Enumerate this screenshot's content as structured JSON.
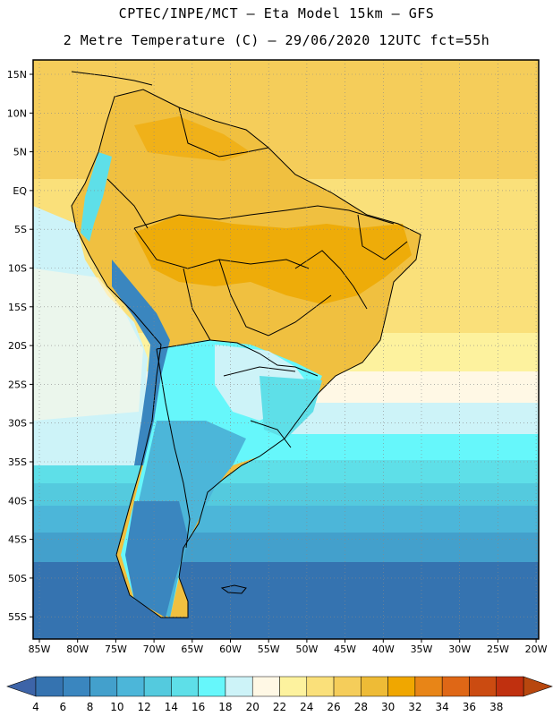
{
  "header": {
    "title_line1": "CPTEC/INPE/MCT –  Eta Model 15km – GFS",
    "title_line2": "2 Metre Temperature (C) – 29/06/2020 12UTC fct=55h"
  },
  "map": {
    "lat_labels": [
      "15N",
      "10N",
      "5N",
      "EQ",
      "5S",
      "10S",
      "15S",
      "20S",
      "25S",
      "30S",
      "35S",
      "40S",
      "45S",
      "50S",
      "55S"
    ],
    "lon_labels": [
      "85W",
      "80W",
      "75W",
      "70W",
      "65W",
      "60W",
      "55W",
      "50W",
      "45W",
      "40W",
      "35W",
      "30W",
      "25W",
      "20W"
    ]
  },
  "colorbar": {
    "labels": [
      "4",
      "6",
      "8",
      "10",
      "12",
      "14",
      "16",
      "18",
      "20",
      "22",
      "24",
      "26",
      "28",
      "30",
      "32",
      "34",
      "36",
      "38"
    ],
    "colors": [
      "#3573b0",
      "#3a86bf",
      "#43a0cc",
      "#4cb6d9",
      "#54cade",
      "#5edfe8",
      "#66f7fb",
      "#cdf3f8",
      "#fff8e5",
      "#fdf29e",
      "#fae07a",
      "#f5cd5a",
      "#eebb36",
      "#f0a700",
      "#e88517",
      "#df6716",
      "#cb4b11",
      "#c0300f"
    ],
    "min_color": "#3d64a8",
    "max_color": "#b8470e"
  },
  "palette": {
    "ocean_far": "#2a62a6",
    "land_warm": "#eeb238",
    "land_hot": "#eda800",
    "border": "#000000"
  }
}
